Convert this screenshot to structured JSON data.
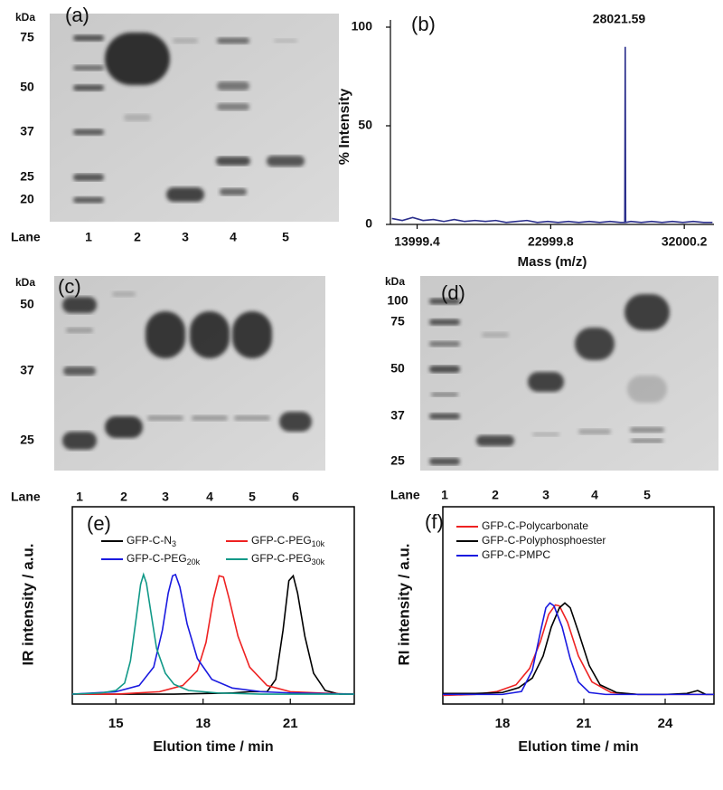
{
  "gels": [
    {
      "label": "(a)",
      "unit": "kDa",
      "markers": [
        "75",
        "50",
        "37",
        "25",
        "20"
      ],
      "lane_title": "Lane",
      "lanes": [
        "1",
        "2",
        "3",
        "4",
        "5"
      ]
    },
    {
      "label": "(c)",
      "unit": "kDa",
      "markers": [
        "50",
        "37",
        "25"
      ],
      "lane_title": "Lane",
      "lanes": [
        "1",
        "2",
        "3",
        "4",
        "5",
        "6"
      ]
    },
    {
      "label": "(d)",
      "unit": "kDa",
      "markers": [
        "100",
        "75",
        "50",
        "37",
        "25"
      ],
      "lane_title": "Lane",
      "lanes": [
        "1",
        "2",
        "3",
        "4",
        "5"
      ]
    }
  ],
  "chart_data": [
    {
      "type": "line",
      "label": "(b)",
      "xlabel": "Mass (m/z)",
      "ylabel": "% Intensity",
      "annotation": "28021.59",
      "xlim": [
        12200,
        34000
      ],
      "xticks": [
        13999.4,
        22999.8,
        32000.2
      ],
      "ylim": [
        0,
        100
      ],
      "yticks": [
        0,
        50,
        100
      ],
      "series": [
        {
          "name": null,
          "color": "#2b2f8c",
          "x": [
            12300,
            13000,
            13700,
            14400,
            15100,
            15800,
            16500,
            17200,
            17900,
            18600,
            19300,
            20000,
            20700,
            21400,
            22100,
            22800,
            23500,
            24200,
            24900,
            25600,
            26300,
            27000,
            27700,
            27990,
            28021.59,
            28050,
            28400,
            29100,
            29800,
            30500,
            31200,
            31900,
            32600,
            33300,
            33900
          ],
          "values": [
            3,
            2,
            3.5,
            2,
            2.5,
            1.5,
            2.5,
            1.5,
            2,
            1.5,
            2,
            1,
            1.5,
            2,
            1,
            1.5,
            1,
            1.5,
            1,
            1.5,
            1,
            1.5,
            1,
            1,
            90,
            1,
            1.5,
            1,
            1.5,
            1,
            1.5,
            1,
            1.5,
            1,
            1
          ]
        }
      ]
    },
    {
      "type": "line",
      "label": "(e)",
      "xlabel": "Elution time / min",
      "ylabel": "IR intensity / a.u.",
      "xlim": [
        13.5,
        23.2
      ],
      "xticks": [
        15,
        18,
        21
      ],
      "ylim": [
        -0.05,
        1.55
      ],
      "series": [
        {
          "name": "GFP-C-N3",
          "color": "#000000",
          "x": [
            13.5,
            17,
            19,
            19.6,
            20.2,
            20.5,
            20.75,
            20.95,
            21.1,
            21.25,
            21.5,
            21.8,
            22.2,
            22.7,
            23.2
          ],
          "values": [
            0.03,
            0.03,
            0.04,
            0.05,
            0.05,
            0.15,
            0.55,
            0.95,
            0.99,
            0.85,
            0.5,
            0.2,
            0.06,
            0.03,
            0.03
          ]
        },
        {
          "name": "GFP-C-PEG10k",
          "color": "#ee2222",
          "x": [
            13.5,
            15,
            16.5,
            17.3,
            17.8,
            18.1,
            18.35,
            18.55,
            18.7,
            18.9,
            19.2,
            19.6,
            20.2,
            21,
            22,
            23.2
          ],
          "values": [
            0.03,
            0.03,
            0.05,
            0.1,
            0.22,
            0.45,
            0.8,
            0.99,
            0.98,
            0.8,
            0.5,
            0.25,
            0.1,
            0.05,
            0.04,
            0.03
          ]
        },
        {
          "name": "GFP-C-PEG20k",
          "color": "#1a1ae0",
          "x": [
            13.5,
            15,
            15.8,
            16.3,
            16.6,
            16.8,
            16.95,
            17.05,
            17.2,
            17.45,
            17.8,
            18.3,
            19,
            20,
            21,
            23.2
          ],
          "values": [
            0.03,
            0.05,
            0.1,
            0.25,
            0.55,
            0.85,
            0.99,
            1.0,
            0.9,
            0.6,
            0.32,
            0.15,
            0.08,
            0.05,
            0.04,
            0.03
          ]
        },
        {
          "name": "GFP-C-PEG30k",
          "color": "#119988",
          "x": [
            13.5,
            14.5,
            15.0,
            15.3,
            15.5,
            15.7,
            15.85,
            15.95,
            16.05,
            16.2,
            16.4,
            16.7,
            17.0,
            17.5,
            18.5,
            20,
            23.2
          ],
          "values": [
            0.03,
            0.04,
            0.06,
            0.12,
            0.3,
            0.65,
            0.92,
            1.0,
            0.93,
            0.7,
            0.4,
            0.2,
            0.11,
            0.06,
            0.04,
            0.03,
            0.03
          ]
        }
      ]
    },
    {
      "type": "line",
      "label": "(f)",
      "xlabel": "Elution time / min",
      "ylabel": "RI intensity / a.u.",
      "xlim": [
        15.8,
        25.8
      ],
      "xticks": [
        18,
        21,
        24
      ],
      "ylim": [
        -0.05,
        2.0
      ],
      "series": [
        {
          "name": "GFP-C-Polycarbonate",
          "color": "#ee2222",
          "x": [
            15.8,
            17,
            17.8,
            18.5,
            19,
            19.4,
            19.7,
            19.95,
            20.1,
            20.4,
            20.8,
            21.3,
            22,
            23,
            24,
            25.8
          ],
          "values": [
            0.04,
            0.05,
            0.08,
            0.15,
            0.32,
            0.6,
            0.88,
            0.98,
            0.97,
            0.8,
            0.45,
            0.18,
            0.07,
            0.05,
            0.05,
            0.05
          ]
        },
        {
          "name": "GFP-C-Polyphosphoester",
          "color": "#000000",
          "x": [
            15.8,
            17,
            18,
            18.6,
            19.1,
            19.5,
            19.8,
            20.1,
            20.3,
            20.5,
            20.8,
            21.2,
            21.6,
            22.2,
            23,
            24,
            24.8,
            25.2,
            25.5,
            25.8
          ],
          "values": [
            0.06,
            0.06,
            0.07,
            0.12,
            0.22,
            0.45,
            0.75,
            0.95,
            1.0,
            0.95,
            0.7,
            0.35,
            0.15,
            0.07,
            0.05,
            0.05,
            0.06,
            0.09,
            0.05,
            0.05
          ]
        },
        {
          "name": "GFP-C-PMPC",
          "color": "#1a1ae0",
          "x": [
            15.8,
            18,
            18.7,
            19.1,
            19.4,
            19.6,
            19.75,
            19.9,
            20.2,
            20.5,
            20.8,
            21.2,
            21.8,
            23,
            25.8
          ],
          "values": [
            0.05,
            0.05,
            0.08,
            0.3,
            0.7,
            0.95,
            1.0,
            0.97,
            0.75,
            0.42,
            0.18,
            0.07,
            0.05,
            0.05,
            0.05
          ]
        }
      ]
    }
  ]
}
